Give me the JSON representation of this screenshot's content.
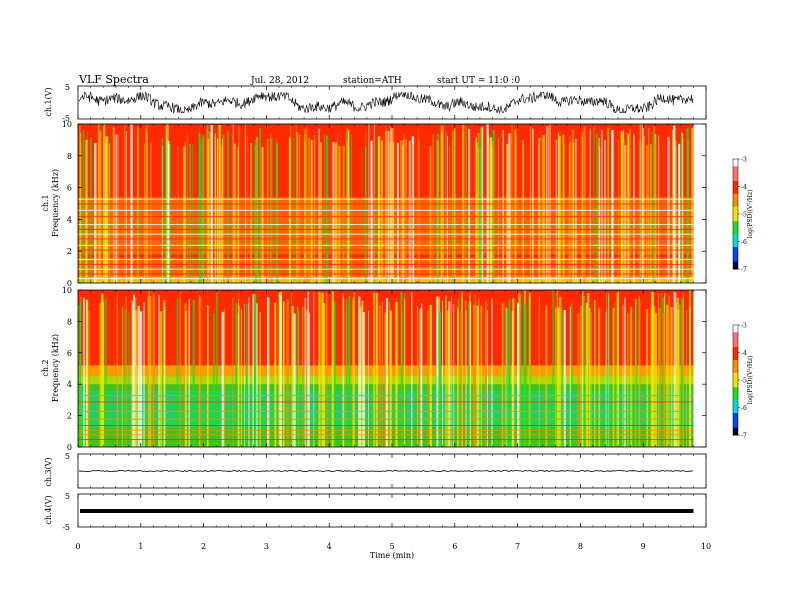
{
  "header": {
    "title": "VLF  Spectra",
    "date": "Jul. 28, 2012",
    "station": "station=ATH",
    "start": "start  UT  =    11:0  :0"
  },
  "chart_data": [
    {
      "type": "line",
      "id": "ch1-waveform",
      "ylabel": "ch.1(V)",
      "ylim": [
        -5,
        5
      ],
      "yticks": [
        "5",
        "-5"
      ],
      "xlim": [
        0,
        10
      ],
      "description_values": "noisy waveform oscillating between about -3 and +3 V over 0–9.8 min"
    },
    {
      "type": "heatmap",
      "id": "ch1-spectrogram",
      "ylabel": "ch.1\nFrequency (kHz)",
      "ylim": [
        0,
        10
      ],
      "yticks": [
        "0",
        "2",
        "4",
        "6",
        "8",
        "10"
      ],
      "xlim": [
        0,
        10
      ],
      "dominant_log_psd": -4,
      "colorbar": {
        "label": "log(PSD)(V²/Hz)",
        "ticks": [
          "-3",
          "-4",
          "-5",
          "-6",
          "-7"
        ],
        "range": [
          -7,
          -3
        ]
      }
    },
    {
      "type": "heatmap",
      "id": "ch2-spectrogram",
      "ylabel": "ch.2\nFrequency (kHz)",
      "ylim": [
        0,
        10
      ],
      "yticks": [
        "0",
        "2",
        "4",
        "6",
        "8",
        "10"
      ],
      "xlim": [
        0,
        10
      ],
      "colorbar": {
        "label": "log(PSD)(V²/Hz)",
        "ticks": [
          "-3",
          "-4",
          "-5",
          "-6",
          "-7"
        ],
        "range": [
          -7,
          -3
        ]
      }
    },
    {
      "type": "line",
      "id": "ch3-waveform",
      "ylabel": "ch.3(V)",
      "ylim": [
        -5,
        5
      ],
      "yticks": [
        "5",
        "-5"
      ],
      "value": 0
    },
    {
      "type": "line",
      "id": "ch4-waveform",
      "ylabel": "ch.4(V)",
      "ylim": [
        -5,
        5
      ],
      "yticks": [
        "5",
        "-5"
      ],
      "value": 0
    }
  ],
  "xaxis": {
    "label": "Time (min)",
    "ticks": [
      "0",
      "1",
      "2",
      "3",
      "4",
      "5",
      "6",
      "7",
      "8",
      "9",
      "10"
    ],
    "data_end": 9.8
  },
  "colors": {
    "red": "#ff2a00",
    "orange": "#ff8c00",
    "yellow": "#f5e600",
    "green": "#22dd22",
    "cyan": "#00e0d0",
    "blue": "#0044ff",
    "dark": "#000000"
  }
}
